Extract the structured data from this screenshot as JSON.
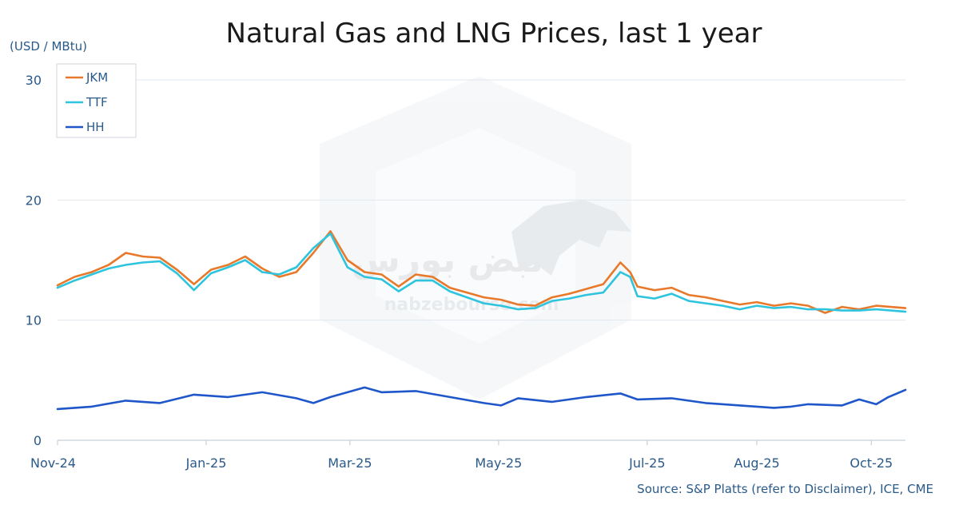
{
  "chart_data": {
    "type": "line",
    "title": "Natural Gas and LNG Prices, last 1 year",
    "unit_label": "(USD / MBtu)",
    "source": "Source: S&P Platts (refer to Disclaimer), ICE, CME",
    "watermark": {
      "text_fa": "نبض بورس",
      "text_en": "nabzebourse.com",
      "logo": "bull-logo"
    },
    "ylim": [
      0,
      30
    ],
    "yticks": [
      "0",
      "10",
      "20",
      "30"
    ],
    "x_range": [
      "2024-11-01",
      "2025-10-15"
    ],
    "xticks": [
      {
        "date": "2024-11-01",
        "label": "Nov-24"
      },
      {
        "date": "2025-01-01",
        "label": "Jan-25"
      },
      {
        "date": "2025-03-01",
        "label": "Mar-25"
      },
      {
        "date": "2025-05-01",
        "label": "May-25"
      },
      {
        "date": "2025-07-01",
        "label": "Jul-25"
      },
      {
        "date": "2025-08-15",
        "label": "Aug-25"
      },
      {
        "date": "2025-10-01",
        "label": "Oct-25"
      }
    ],
    "grid": true,
    "legend_position": "top-left",
    "series": [
      {
        "name": "JKM",
        "color": "#e8792a",
        "points": [
          [
            "2024-11-01",
            12.9
          ],
          [
            "2024-11-08",
            13.6
          ],
          [
            "2024-11-15",
            14.0
          ],
          [
            "2024-11-22",
            14.6
          ],
          [
            "2024-11-29",
            15.6
          ],
          [
            "2024-12-06",
            15.3
          ],
          [
            "2024-12-13",
            15.2
          ],
          [
            "2024-12-20",
            14.2
          ],
          [
            "2024-12-27",
            13.0
          ],
          [
            "2025-01-03",
            14.2
          ],
          [
            "2025-01-10",
            14.6
          ],
          [
            "2025-01-17",
            15.3
          ],
          [
            "2025-01-24",
            14.3
          ],
          [
            "2025-01-31",
            13.6
          ],
          [
            "2025-02-07",
            14.0
          ],
          [
            "2025-02-14",
            15.6
          ],
          [
            "2025-02-21",
            17.4
          ],
          [
            "2025-02-28",
            15.0
          ],
          [
            "2025-03-07",
            14.0
          ],
          [
            "2025-03-14",
            13.8
          ],
          [
            "2025-03-21",
            12.8
          ],
          [
            "2025-03-28",
            13.8
          ],
          [
            "2025-04-04",
            13.6
          ],
          [
            "2025-04-11",
            12.7
          ],
          [
            "2025-04-18",
            12.3
          ],
          [
            "2025-04-25",
            11.9
          ],
          [
            "2025-05-02",
            11.7
          ],
          [
            "2025-05-09",
            11.3
          ],
          [
            "2025-05-16",
            11.2
          ],
          [
            "2025-05-23",
            11.9
          ],
          [
            "2025-05-30",
            12.2
          ],
          [
            "2025-06-06",
            12.6
          ],
          [
            "2025-06-13",
            13.0
          ],
          [
            "2025-06-20",
            14.8
          ],
          [
            "2025-06-24",
            14.0
          ],
          [
            "2025-06-27",
            12.8
          ],
          [
            "2025-07-04",
            12.5
          ],
          [
            "2025-07-11",
            12.7
          ],
          [
            "2025-07-18",
            12.1
          ],
          [
            "2025-07-25",
            11.9
          ],
          [
            "2025-08-01",
            11.6
          ],
          [
            "2025-08-08",
            11.3
          ],
          [
            "2025-08-15",
            11.5
          ],
          [
            "2025-08-22",
            11.2
          ],
          [
            "2025-08-29",
            11.4
          ],
          [
            "2025-09-05",
            11.2
          ],
          [
            "2025-09-12",
            10.6
          ],
          [
            "2025-09-19",
            11.1
          ],
          [
            "2025-09-26",
            10.9
          ],
          [
            "2025-10-03",
            11.2
          ],
          [
            "2025-10-15",
            11.0
          ]
        ]
      },
      {
        "name": "TTF",
        "color": "#2ec4de",
        "points": [
          [
            "2024-11-01",
            12.7
          ],
          [
            "2024-11-08",
            13.3
          ],
          [
            "2024-11-15",
            13.8
          ],
          [
            "2024-11-22",
            14.3
          ],
          [
            "2024-11-29",
            14.6
          ],
          [
            "2024-12-06",
            14.8
          ],
          [
            "2024-12-13",
            14.9
          ],
          [
            "2024-12-20",
            13.9
          ],
          [
            "2024-12-27",
            12.5
          ],
          [
            "2025-01-03",
            13.9
          ],
          [
            "2025-01-10",
            14.4
          ],
          [
            "2025-01-17",
            15.0
          ],
          [
            "2025-01-24",
            14.0
          ],
          [
            "2025-01-31",
            13.8
          ],
          [
            "2025-02-07",
            14.4
          ],
          [
            "2025-02-14",
            16.0
          ],
          [
            "2025-02-21",
            17.2
          ],
          [
            "2025-02-28",
            14.4
          ],
          [
            "2025-03-07",
            13.6
          ],
          [
            "2025-03-14",
            13.4
          ],
          [
            "2025-03-21",
            12.4
          ],
          [
            "2025-03-28",
            13.3
          ],
          [
            "2025-04-04",
            13.3
          ],
          [
            "2025-04-11",
            12.4
          ],
          [
            "2025-04-18",
            11.9
          ],
          [
            "2025-04-25",
            11.4
          ],
          [
            "2025-05-02",
            11.2
          ],
          [
            "2025-05-09",
            10.9
          ],
          [
            "2025-05-16",
            11.0
          ],
          [
            "2025-05-23",
            11.6
          ],
          [
            "2025-05-30",
            11.8
          ],
          [
            "2025-06-06",
            12.1
          ],
          [
            "2025-06-13",
            12.3
          ],
          [
            "2025-06-20",
            14.0
          ],
          [
            "2025-06-24",
            13.6
          ],
          [
            "2025-06-27",
            12.0
          ],
          [
            "2025-07-04",
            11.8
          ],
          [
            "2025-07-11",
            12.2
          ],
          [
            "2025-07-18",
            11.6
          ],
          [
            "2025-07-25",
            11.4
          ],
          [
            "2025-08-01",
            11.2
          ],
          [
            "2025-08-08",
            10.9
          ],
          [
            "2025-08-15",
            11.2
          ],
          [
            "2025-08-22",
            11.0
          ],
          [
            "2025-08-29",
            11.1
          ],
          [
            "2025-09-05",
            10.9
          ],
          [
            "2025-09-12",
            10.9
          ],
          [
            "2025-09-19",
            10.8
          ],
          [
            "2025-09-26",
            10.8
          ],
          [
            "2025-10-03",
            10.9
          ],
          [
            "2025-10-15",
            10.7
          ]
        ]
      },
      {
        "name": "HH",
        "color": "#1f56c9",
        "points": [
          [
            "2024-11-01",
            2.6
          ],
          [
            "2024-11-15",
            2.8
          ],
          [
            "2024-11-29",
            3.3
          ],
          [
            "2024-12-13",
            3.1
          ],
          [
            "2024-12-27",
            3.8
          ],
          [
            "2025-01-10",
            3.6
          ],
          [
            "2025-01-24",
            4.0
          ],
          [
            "2025-02-07",
            3.5
          ],
          [
            "2025-02-14",
            3.1
          ],
          [
            "2025-02-21",
            3.6
          ],
          [
            "2025-03-07",
            4.4
          ],
          [
            "2025-03-14",
            4.0
          ],
          [
            "2025-03-28",
            4.1
          ],
          [
            "2025-04-11",
            3.6
          ],
          [
            "2025-04-25",
            3.1
          ],
          [
            "2025-05-02",
            2.9
          ],
          [
            "2025-05-09",
            3.5
          ],
          [
            "2025-05-23",
            3.2
          ],
          [
            "2025-06-06",
            3.6
          ],
          [
            "2025-06-20",
            3.9
          ],
          [
            "2025-06-27",
            3.4
          ],
          [
            "2025-07-11",
            3.5
          ],
          [
            "2025-07-25",
            3.1
          ],
          [
            "2025-08-08",
            2.9
          ],
          [
            "2025-08-22",
            2.7
          ],
          [
            "2025-08-29",
            2.8
          ],
          [
            "2025-09-05",
            3.0
          ],
          [
            "2025-09-19",
            2.9
          ],
          [
            "2025-09-26",
            3.4
          ],
          [
            "2025-10-03",
            3.0
          ],
          [
            "2025-10-08",
            3.6
          ],
          [
            "2025-10-15",
            4.2
          ]
        ]
      }
    ]
  }
}
